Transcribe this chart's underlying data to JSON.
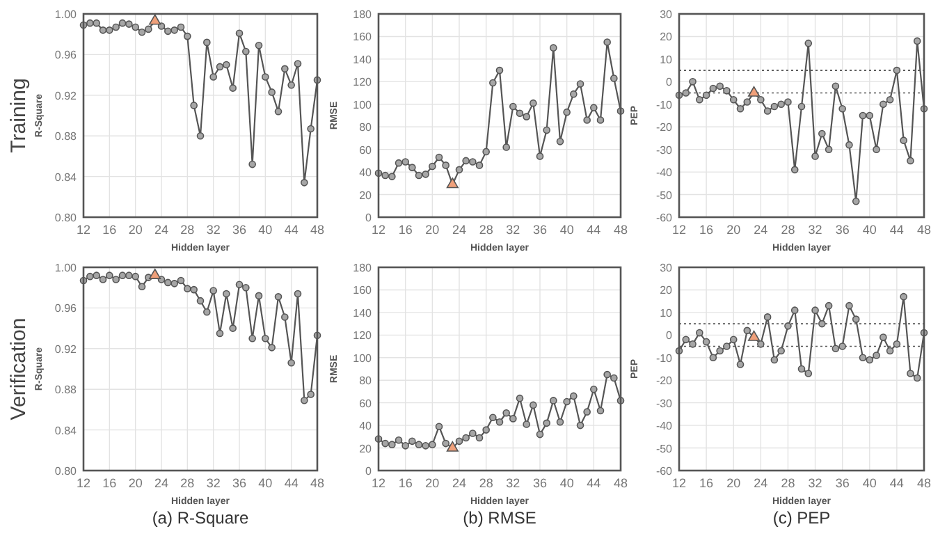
{
  "chart_data": [
    {
      "type": "line",
      "xlabel": "Hidden layer",
      "ylabel": "R-Square",
      "annotations": [
        "Training"
      ],
      "x": [
        12,
        13,
        14,
        15,
        16,
        17,
        18,
        19,
        20,
        21,
        22,
        23,
        24,
        25,
        26,
        27,
        28,
        29,
        30,
        31,
        32,
        33,
        34,
        35,
        36,
        37,
        38,
        39,
        40,
        41,
        42,
        43,
        44,
        45,
        46,
        47,
        48
      ],
      "xlim": [
        12,
        48
      ],
      "xticks": [
        12,
        16,
        20,
        24,
        28,
        32,
        36,
        40,
        44,
        48
      ],
      "ylim": [
        0.8,
        1.0
      ],
      "yticks": [
        {
          "value": 0.8,
          "label": "0.80"
        },
        {
          "value": 0.84,
          "label": "0.84"
        },
        {
          "value": 0.88,
          "label": "0.88"
        },
        {
          "value": 0.92,
          "label": "0.92"
        },
        {
          "value": 0.96,
          "label": "0.96"
        },
        {
          "value": 1.0,
          "label": "1.00"
        }
      ],
      "grid": true,
      "series": [
        {
          "color": "#555555",
          "marker": "none",
          "values": [
            0.989,
            0.991,
            0.991,
            0.984,
            0.984,
            0.987,
            0.991,
            0.99,
            0.987,
            0.982,
            0.985,
            0.993,
            0.988,
            0.983,
            0.984,
            0.987,
            0.978,
            0.91,
            0.88,
            0.972,
            0.938,
            0.948,
            0.95,
            0.927,
            0.981,
            0.963,
            0.852,
            0.969,
            0.938,
            0.923,
            0.904,
            0.946,
            0.93,
            0.951,
            0.834,
            0.887,
            0.935
          ]
        },
        {
          "type": "scatter",
          "color": "#a6a6a6",
          "marker": "circle",
          "values": [
            0.989,
            0.991,
            0.991,
            0.984,
            0.984,
            0.987,
            0.991,
            0.99,
            0.987,
            0.982,
            0.985,
            null,
            0.988,
            0.983,
            0.984,
            0.987,
            0.978,
            0.91,
            0.88,
            0.972,
            0.938,
            0.948,
            0.95,
            0.927,
            0.981,
            0.963,
            0.852,
            0.969,
            0.938,
            0.923,
            0.904,
            0.946,
            0.93,
            0.951,
            0.834,
            0.887,
            0.935
          ]
        },
        {
          "type": "scatter",
          "color": "#f0a07a",
          "marker": "triangle",
          "values": [
            null,
            null,
            null,
            null,
            null,
            null,
            null,
            null,
            null,
            null,
            null,
            0.993,
            null,
            null,
            null,
            null,
            null,
            null,
            null,
            null,
            null,
            null,
            null,
            null,
            null,
            null,
            null,
            null,
            null,
            null,
            null,
            null,
            null,
            null,
            null,
            null,
            null
          ]
        }
      ]
    },
    {
      "type": "line",
      "xlabel": "Hidden layer",
      "ylabel": "RMSE",
      "x": [
        12,
        13,
        14,
        15,
        16,
        17,
        18,
        19,
        20,
        21,
        22,
        23,
        24,
        25,
        26,
        27,
        28,
        29,
        30,
        31,
        32,
        33,
        34,
        35,
        36,
        37,
        38,
        39,
        40,
        41,
        42,
        43,
        44,
        45,
        46,
        47,
        48
      ],
      "xlim": [
        12,
        48
      ],
      "xticks": [
        12,
        16,
        20,
        24,
        28,
        32,
        36,
        40,
        44,
        48
      ],
      "ylim": [
        0,
        180
      ],
      "yticks": [
        0,
        20,
        40,
        60,
        80,
        100,
        120,
        140,
        160,
        180
      ],
      "grid": true,
      "series": [
        {
          "color": "#555555",
          "marker": "none",
          "values": [
            39,
            37,
            36,
            48,
            49,
            44,
            37,
            38,
            45,
            53,
            46,
            29,
            42,
            50,
            49,
            46,
            58,
            119,
            130,
            62,
            98,
            92,
            89,
            101,
            54,
            77,
            150,
            67,
            93,
            109,
            118,
            86,
            97,
            86,
            155,
            123,
            94
          ]
        },
        {
          "type": "scatter",
          "color": "#a6a6a6",
          "marker": "circle",
          "values": [
            39,
            37,
            36,
            48,
            49,
            44,
            37,
            38,
            45,
            53,
            46,
            null,
            42,
            50,
            49,
            46,
            58,
            119,
            130,
            62,
            98,
            92,
            89,
            101,
            54,
            77,
            150,
            67,
            93,
            109,
            118,
            86,
            97,
            86,
            155,
            123,
            94
          ]
        },
        {
          "type": "scatter",
          "color": "#f0a07a",
          "marker": "triangle",
          "values": [
            null,
            null,
            null,
            null,
            null,
            null,
            null,
            null,
            null,
            null,
            null,
            29,
            null,
            null,
            null,
            null,
            null,
            null,
            null,
            null,
            null,
            null,
            null,
            null,
            null,
            null,
            null,
            null,
            null,
            null,
            null,
            null,
            null,
            null,
            null,
            null,
            null
          ]
        }
      ]
    },
    {
      "type": "line",
      "xlabel": "Hidden layer",
      "ylabel": "PEP",
      "x": [
        12,
        13,
        14,
        15,
        16,
        17,
        18,
        19,
        20,
        21,
        22,
        23,
        24,
        25,
        26,
        27,
        28,
        29,
        30,
        31,
        32,
        33,
        34,
        35,
        36,
        37,
        38,
        39,
        40,
        41,
        42,
        43,
        44,
        45,
        46,
        47,
        48
      ],
      "xlim": [
        12,
        48
      ],
      "xticks": [
        12,
        16,
        20,
        24,
        28,
        32,
        36,
        40,
        44,
        48
      ],
      "ylim": [
        -60,
        30
      ],
      "yticks": [
        -60,
        -50,
        -40,
        -30,
        -20,
        -10,
        0,
        10,
        20,
        30
      ],
      "grid": true,
      "ref_lines": [
        {
          "axis": "y",
          "value": 5,
          "line_style": "dotted",
          "color": "#555555"
        },
        {
          "axis": "y",
          "value": -5,
          "line_style": "dotted",
          "color": "#555555"
        }
      ],
      "series": [
        {
          "color": "#555555",
          "marker": "none",
          "values": [
            -6,
            -5,
            0,
            -8,
            -6,
            -3,
            -2,
            -4,
            -8,
            -12,
            -9,
            -5,
            -8,
            -13,
            -11,
            -10,
            -9,
            -39,
            -11,
            17,
            -33,
            -23,
            -30,
            -2,
            -12,
            -28,
            -53,
            -15,
            -15,
            -30,
            -10,
            -8,
            5,
            -26,
            -35,
            18,
            -12
          ]
        },
        {
          "type": "scatter",
          "color": "#a6a6a6",
          "marker": "circle",
          "values": [
            -6,
            -5,
            0,
            -8,
            -6,
            -3,
            -2,
            -4,
            -8,
            -12,
            -9,
            null,
            -8,
            -13,
            -11,
            -10,
            -9,
            -39,
            -11,
            17,
            -33,
            -23,
            -30,
            -2,
            -12,
            -28,
            -53,
            -15,
            -15,
            -30,
            -10,
            -8,
            5,
            -26,
            -35,
            18,
            -12
          ]
        },
        {
          "type": "scatter",
          "color": "#f0a07a",
          "marker": "triangle",
          "values": [
            null,
            null,
            null,
            null,
            null,
            null,
            null,
            null,
            null,
            null,
            null,
            -5,
            null,
            null,
            null,
            null,
            null,
            null,
            null,
            null,
            null,
            null,
            null,
            null,
            null,
            null,
            null,
            null,
            null,
            null,
            null,
            null,
            null,
            null,
            null,
            null,
            null
          ]
        }
      ]
    },
    {
      "type": "line",
      "title": "(a)  R-Square",
      "xlabel": "Hidden layer",
      "ylabel": "R-Square",
      "annotations": [
        "Verification"
      ],
      "x": [
        12,
        13,
        14,
        15,
        16,
        17,
        18,
        19,
        20,
        21,
        22,
        23,
        24,
        25,
        26,
        27,
        28,
        29,
        30,
        31,
        32,
        33,
        34,
        35,
        36,
        37,
        38,
        39,
        40,
        41,
        42,
        43,
        44,
        45,
        46,
        47,
        48
      ],
      "xlim": [
        12,
        48
      ],
      "xticks": [
        12,
        16,
        20,
        24,
        28,
        32,
        36,
        40,
        44,
        48
      ],
      "ylim": [
        0.8,
        1.0
      ],
      "yticks": [
        {
          "value": 0.8,
          "label": "0.80"
        },
        {
          "value": 0.84,
          "label": "0.84"
        },
        {
          "value": 0.88,
          "label": "0.88"
        },
        {
          "value": 0.92,
          "label": "0.92"
        },
        {
          "value": 0.96,
          "label": "0.96"
        },
        {
          "value": 1.0,
          "label": "1.00"
        }
      ],
      "grid": true,
      "series": [
        {
          "color": "#555555",
          "marker": "none",
          "values": [
            0.987,
            0.991,
            0.992,
            0.988,
            0.992,
            0.988,
            0.992,
            0.992,
            0.991,
            0.981,
            0.99,
            0.992,
            0.988,
            0.985,
            0.984,
            0.987,
            0.979,
            0.978,
            0.967,
            0.956,
            0.977,
            0.935,
            0.974,
            0.94,
            0.983,
            0.98,
            0.93,
            0.972,
            0.93,
            0.921,
            0.971,
            0.951,
            0.906,
            0.974,
            0.869,
            0.875,
            0.933
          ]
        },
        {
          "type": "scatter",
          "color": "#a6a6a6",
          "marker": "circle",
          "values": [
            0.987,
            0.991,
            0.992,
            0.988,
            0.992,
            0.988,
            0.992,
            0.992,
            0.991,
            0.981,
            0.99,
            null,
            0.988,
            0.985,
            0.984,
            0.987,
            0.979,
            0.978,
            0.967,
            0.956,
            0.977,
            0.935,
            0.974,
            0.94,
            0.983,
            0.98,
            0.93,
            0.972,
            0.93,
            0.921,
            0.971,
            0.951,
            0.906,
            0.974,
            0.869,
            0.875,
            0.933
          ]
        },
        {
          "type": "scatter",
          "color": "#f0a07a",
          "marker": "triangle",
          "values": [
            null,
            null,
            null,
            null,
            null,
            null,
            null,
            null,
            null,
            null,
            null,
            0.992,
            null,
            null,
            null,
            null,
            null,
            null,
            null,
            null,
            null,
            null,
            null,
            null,
            null,
            null,
            null,
            null,
            null,
            null,
            null,
            null,
            null,
            null,
            null,
            null,
            null
          ]
        }
      ]
    },
    {
      "type": "line",
      "title": "(b)  RMSE",
      "xlabel": "Hidden layer",
      "ylabel": "RMSE",
      "x": [
        12,
        13,
        14,
        15,
        16,
        17,
        18,
        19,
        20,
        21,
        22,
        23,
        24,
        25,
        26,
        27,
        28,
        29,
        30,
        31,
        32,
        33,
        34,
        35,
        36,
        37,
        38,
        39,
        40,
        41,
        42,
        43,
        44,
        45,
        46,
        47,
        48
      ],
      "xlim": [
        12,
        48
      ],
      "xticks": [
        12,
        16,
        20,
        24,
        28,
        32,
        36,
        40,
        44,
        48
      ],
      "ylim": [
        0,
        180
      ],
      "yticks": [
        0,
        20,
        40,
        60,
        80,
        100,
        120,
        140,
        160,
        180
      ],
      "grid": true,
      "series": [
        {
          "color": "#555555",
          "marker": "none",
          "values": [
            28,
            24,
            23,
            27,
            22,
            26,
            23,
            22,
            23,
            39,
            24,
            20,
            26,
            29,
            33,
            29,
            36,
            47,
            43,
            51,
            46,
            64,
            41,
            58,
            32,
            42,
            62,
            43,
            61,
            66,
            40,
            52,
            72,
            53,
            85,
            82,
            62
          ]
        },
        {
          "type": "scatter",
          "color": "#a6a6a6",
          "marker": "circle",
          "values": [
            28,
            24,
            23,
            27,
            22,
            26,
            23,
            22,
            23,
            39,
            24,
            null,
            26,
            29,
            33,
            29,
            36,
            47,
            43,
            51,
            46,
            64,
            41,
            58,
            32,
            42,
            62,
            43,
            61,
            66,
            40,
            52,
            72,
            53,
            85,
            82,
            62
          ]
        },
        {
          "type": "scatter",
          "color": "#f0a07a",
          "marker": "triangle",
          "values": [
            null,
            null,
            null,
            null,
            null,
            null,
            null,
            null,
            null,
            null,
            null,
            20,
            null,
            null,
            null,
            null,
            null,
            null,
            null,
            null,
            null,
            null,
            null,
            null,
            null,
            null,
            null,
            null,
            null,
            null,
            null,
            null,
            null,
            null,
            null,
            null,
            null
          ]
        }
      ]
    },
    {
      "type": "line",
      "title": "(c)  PEP",
      "xlabel": "Hidden layer",
      "ylabel": "PEP",
      "x": [
        12,
        13,
        14,
        15,
        16,
        17,
        18,
        19,
        20,
        21,
        22,
        23,
        24,
        25,
        26,
        27,
        28,
        29,
        30,
        31,
        32,
        33,
        34,
        35,
        36,
        37,
        38,
        39,
        40,
        41,
        42,
        43,
        44,
        45,
        46,
        47,
        48
      ],
      "xlim": [
        12,
        48
      ],
      "xticks": [
        12,
        16,
        20,
        24,
        28,
        32,
        36,
        40,
        44,
        48
      ],
      "ylim": [
        -60,
        30
      ],
      "yticks": [
        -60,
        -50,
        -40,
        -30,
        -20,
        -10,
        0,
        10,
        20,
        30
      ],
      "grid": true,
      "ref_lines": [
        {
          "axis": "y",
          "value": 5,
          "line_style": "dotted",
          "color": "#555555"
        },
        {
          "axis": "y",
          "value": -5,
          "line_style": "dotted",
          "color": "#555555"
        }
      ],
      "series": [
        {
          "color": "#555555",
          "marker": "none",
          "values": [
            -7,
            -2,
            -4,
            1,
            -3,
            -10,
            -7,
            -5,
            -2,
            -13,
            2,
            -1,
            -4,
            8,
            -11,
            -7,
            4,
            11,
            -15,
            -17,
            11,
            5,
            13,
            -6,
            -5,
            13,
            7,
            -10,
            -11,
            -9,
            -1,
            -7,
            -4,
            17,
            -17,
            -19,
            1
          ]
        },
        {
          "type": "scatter",
          "color": "#a6a6a6",
          "marker": "circle",
          "values": [
            -7,
            -2,
            -4,
            1,
            -3,
            -10,
            -7,
            -5,
            -2,
            -13,
            2,
            null,
            -4,
            8,
            -11,
            -7,
            4,
            11,
            -15,
            -17,
            11,
            5,
            13,
            -6,
            -5,
            13,
            7,
            -10,
            -11,
            -9,
            -1,
            -7,
            -4,
            17,
            -17,
            -19,
            1
          ]
        },
        {
          "type": "scatter",
          "color": "#f0a07a",
          "marker": "triangle",
          "values": [
            null,
            null,
            null,
            null,
            null,
            null,
            null,
            null,
            null,
            null,
            null,
            -1,
            null,
            null,
            null,
            null,
            null,
            null,
            null,
            null,
            null,
            null,
            null,
            null,
            null,
            null,
            null,
            null,
            null,
            null,
            null,
            null,
            null,
            null,
            null,
            null,
            null
          ]
        }
      ]
    }
  ]
}
